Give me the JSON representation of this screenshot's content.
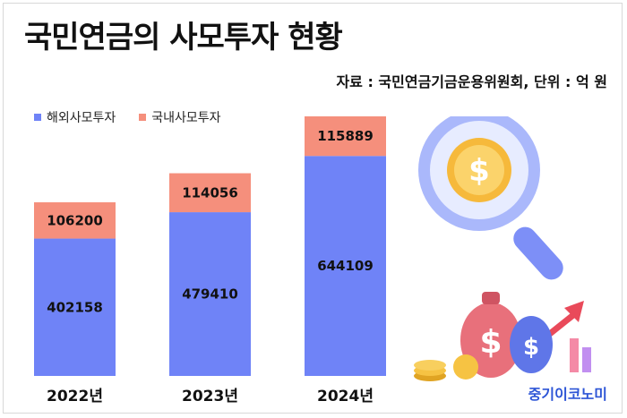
{
  "title": "국민연금의 사모투자 현황",
  "source": "자료 : 국민연금기금운용위원회, 단위 : 억 원",
  "brand": "중기이코노미",
  "colors": {
    "overseas": "#6f83f7",
    "domestic": "#f58f7c"
  },
  "icons": [
    "magnifier-dollar-coin-icon",
    "money-bag-icon",
    "growth-arrow-icon",
    "coin-stack-icon"
  ],
  "chart_data": {
    "type": "bar",
    "stacked": true,
    "categories": [
      "2022년",
      "2023년",
      "2024년"
    ],
    "series": [
      {
        "name": "해외사모투자",
        "values": [
          402158,
          479410,
          644109
        ]
      },
      {
        "name": "국내사모투자",
        "values": [
          106200,
          114056,
          115889
        ]
      }
    ],
    "legend": "top-left",
    "grid": false
  }
}
